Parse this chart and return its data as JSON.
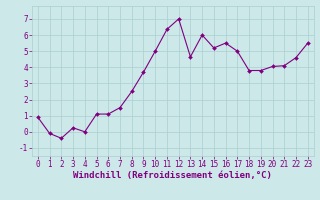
{
  "x": [
    0,
    1,
    2,
    3,
    4,
    5,
    6,
    7,
    8,
    9,
    10,
    11,
    12,
    13,
    14,
    15,
    16,
    17,
    18,
    19,
    20,
    21,
    22,
    23
  ],
  "y": [
    0.9,
    -0.1,
    -0.4,
    0.25,
    0.0,
    1.1,
    1.1,
    1.5,
    2.5,
    3.7,
    5.0,
    6.35,
    7.0,
    4.65,
    6.0,
    5.2,
    5.5,
    5.0,
    3.8,
    3.8,
    4.05,
    4.1,
    4.6,
    5.5
  ],
  "line_color": "#800080",
  "marker": "D",
  "marker_size": 2.0,
  "bg_color": "#cce8e8",
  "grid_color": "#aacfcf",
  "xlabel": "Windchill (Refroidissement éolien,°C)",
  "ylim": [
    -1.5,
    7.8
  ],
  "xlim": [
    -0.5,
    23.5
  ],
  "yticks": [
    -1,
    0,
    1,
    2,
    3,
    4,
    5,
    6,
    7
  ],
  "xticks": [
    0,
    1,
    2,
    3,
    4,
    5,
    6,
    7,
    8,
    9,
    10,
    11,
    12,
    13,
    14,
    15,
    16,
    17,
    18,
    19,
    20,
    21,
    22,
    23
  ],
  "font_color": "#800080",
  "tick_label_size": 5.5,
  "xlabel_size": 6.5,
  "linewidth": 0.8
}
